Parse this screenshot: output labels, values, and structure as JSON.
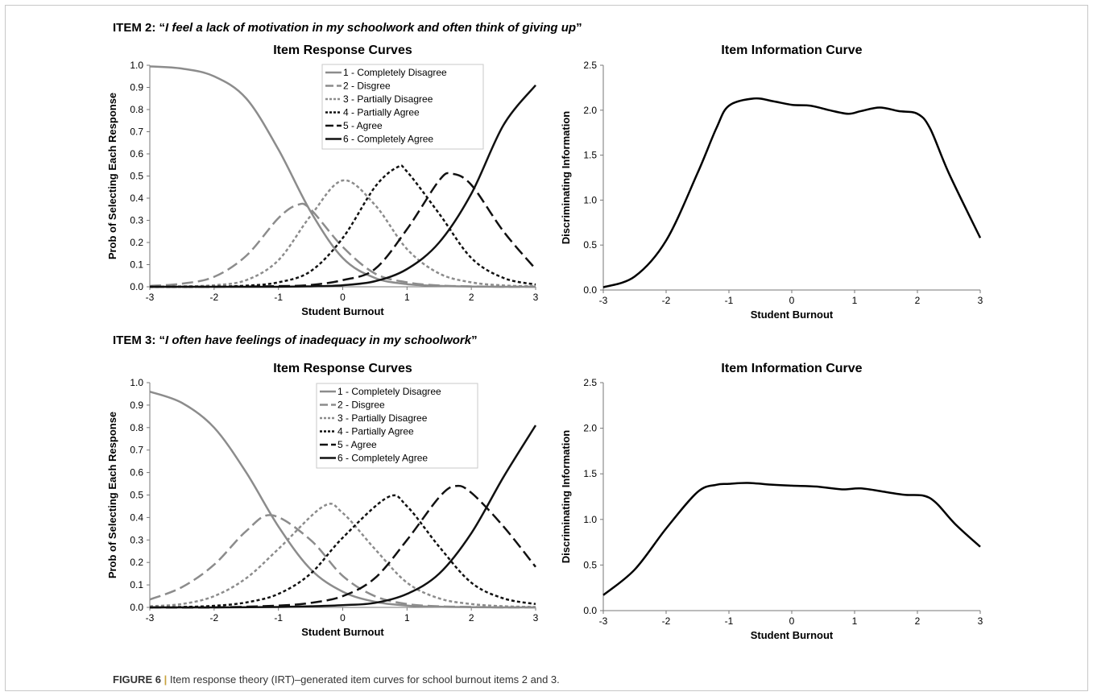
{
  "items": [
    {
      "prefix": "ITEM 2: “",
      "quote": "I feel a lack of motivation in my schoolwork and often think of giving up",
      "suffix": "”"
    },
    {
      "prefix": "ITEM 3: “",
      "quote": "I often have feelings of inadequacy in my schoolwork",
      "suffix": "”"
    }
  ],
  "caption": {
    "label": "FIGURE 6",
    "separator": "|",
    "text": "Item response theory (IRT)–generated item curves for school burnout items 2 and 3."
  },
  "styles": {
    "1 - Completely Disagree": {
      "color": "#8c8c8c",
      "dash": "none"
    },
    "2 - Disgree": {
      "color": "#8c8c8c",
      "dash": "14,6"
    },
    "3 - Partially Disagree": {
      "color": "#8c8c8c",
      "dash": "4,3"
    },
    "4 - Partially Agree": {
      "color": "#111111",
      "dash": "4,3"
    },
    "5 - Agree": {
      "color": "#111111",
      "dash": "14,6"
    },
    "6 - Completely Agree": {
      "color": "#111111",
      "dash": "none"
    }
  },
  "chart_data": [
    {
      "type": "line",
      "title": "Item Response Curves",
      "xlabel": "Student Burnout",
      "ylabel": "Prob of Selecting Each Response",
      "xlim": [
        -3,
        3
      ],
      "ylim": [
        0,
        1.0
      ],
      "xticks": [
        "-3",
        "-2",
        "-1",
        "0",
        "1",
        "2",
        "3"
      ],
      "yticks": [
        "0.0",
        "0.1",
        "0.2",
        "0.3",
        "0.4",
        "0.5",
        "0.6",
        "0.7",
        "0.8",
        "0.9",
        "1.0"
      ],
      "legend": "top-right",
      "series": [
        {
          "name": "1 - Completely Disagree",
          "x": [
            -3,
            -2.5,
            -2,
            -1.5,
            -1,
            -0.5,
            0,
            0.5,
            1,
            1.5,
            2,
            2.5,
            3
          ],
          "y": [
            0.995,
            0.985,
            0.95,
            0.85,
            0.62,
            0.34,
            0.13,
            0.04,
            0.012,
            0.004,
            0.001,
            0.0,
            0.0
          ]
        },
        {
          "name": "2 - Disgree",
          "x": [
            -3,
            -2.5,
            -2,
            -1.5,
            -1,
            -0.7,
            -0.5,
            0,
            0.5,
            1,
            1.5,
            2,
            2.5,
            3
          ],
          "y": [
            0.004,
            0.014,
            0.045,
            0.14,
            0.31,
            0.37,
            0.35,
            0.18,
            0.06,
            0.02,
            0.006,
            0.002,
            0.0,
            0.0
          ]
        },
        {
          "name": "3 - Partially Disagree",
          "x": [
            -3,
            -2.5,
            -2,
            -1.5,
            -1,
            -0.5,
            0,
            0.5,
            1,
            1.5,
            2,
            2.5,
            3
          ],
          "y": [
            0.0,
            0.002,
            0.007,
            0.03,
            0.12,
            0.32,
            0.48,
            0.37,
            0.17,
            0.06,
            0.02,
            0.006,
            0.002
          ]
        },
        {
          "name": "4 - Partially Agree",
          "x": [
            -3,
            -2.5,
            -2,
            -1.5,
            -1,
            -0.5,
            0,
            0.5,
            0.85,
            1,
            1.5,
            2,
            2.5,
            3
          ],
          "y": [
            0.0,
            0.0,
            0.001,
            0.005,
            0.02,
            0.07,
            0.22,
            0.45,
            0.54,
            0.52,
            0.33,
            0.13,
            0.04,
            0.01
          ]
        },
        {
          "name": "5 - Agree",
          "x": [
            -3,
            -2,
            -1,
            -0.5,
            0,
            0.5,
            1,
            1.5,
            1.7,
            2,
            2.5,
            3
          ],
          "y": [
            0.0,
            0.0,
            0.003,
            0.008,
            0.03,
            0.08,
            0.26,
            0.48,
            0.51,
            0.46,
            0.25,
            0.08
          ]
        },
        {
          "name": "6 - Completely Agree",
          "x": [
            -3,
            -2,
            -1,
            -0.5,
            0,
            0.5,
            1,
            1.5,
            2,
            2.5,
            3
          ],
          "y": [
            0.0,
            0.0,
            0.0,
            0.002,
            0.007,
            0.025,
            0.08,
            0.2,
            0.42,
            0.73,
            0.91
          ]
        }
      ]
    },
    {
      "type": "line",
      "title": "Item Information Curve",
      "xlabel": "Student Burnout",
      "ylabel": "Discriminating Information",
      "xlim": [
        -3,
        3
      ],
      "ylim": [
        0,
        2.5
      ],
      "xticks": [
        "-3",
        "-2",
        "-1",
        "0",
        "1",
        "2",
        "3"
      ],
      "yticks": [
        "0.0",
        "0.5",
        "1.0",
        "1.5",
        "2.0",
        "2.5"
      ],
      "series": [
        {
          "name": "",
          "x": [
            -3,
            -2.5,
            -2,
            -1.5,
            -1.2,
            -1,
            -0.6,
            -0.3,
            0,
            0.3,
            0.6,
            0.9,
            1.1,
            1.4,
            1.7,
            2,
            2.2,
            2.5,
            3
          ],
          "y": [
            0.03,
            0.15,
            0.55,
            1.3,
            1.8,
            2.05,
            2.13,
            2.1,
            2.06,
            2.05,
            2.0,
            1.96,
            1.99,
            2.03,
            1.99,
            1.96,
            1.8,
            1.3,
            0.58
          ]
        }
      ]
    },
    {
      "type": "line",
      "title": "Item Response Curves",
      "xlabel": "Student Burnout",
      "ylabel": "Prob of Selecting Each Response",
      "xlim": [
        -3,
        3
      ],
      "ylim": [
        0,
        1.0
      ],
      "xticks": [
        "-3",
        "-2",
        "-1",
        "0",
        "1",
        "2",
        "3"
      ],
      "yticks": [
        "0.0",
        "0.1",
        "0.2",
        "0.3",
        "0.4",
        "0.5",
        "0.6",
        "0.7",
        "0.8",
        "0.9",
        "1.0"
      ],
      "legend": "top-right",
      "series": [
        {
          "name": "1 - Completely Disagree",
          "x": [
            -3,
            -2.5,
            -2,
            -1.5,
            -1,
            -0.5,
            0,
            0.5,
            1,
            1.5,
            2,
            2.5,
            3
          ],
          "y": [
            0.96,
            0.91,
            0.8,
            0.6,
            0.36,
            0.17,
            0.07,
            0.025,
            0.008,
            0.003,
            0.001,
            0.0,
            0.0
          ]
        },
        {
          "name": "2 - Disgree",
          "x": [
            -3,
            -2.5,
            -2,
            -1.5,
            -1.1,
            -0.5,
            0,
            0.5,
            1,
            1.5,
            2,
            2.5,
            3
          ],
          "y": [
            0.035,
            0.09,
            0.19,
            0.34,
            0.41,
            0.3,
            0.14,
            0.05,
            0.015,
            0.005,
            0.002,
            0.0,
            0.0
          ]
        },
        {
          "name": "3 - Partially Disagree",
          "x": [
            -3,
            -2.5,
            -2,
            -1.5,
            -1,
            -0.3,
            0,
            0.5,
            1,
            1.5,
            2,
            2.5,
            3
          ],
          "y": [
            0.005,
            0.015,
            0.05,
            0.13,
            0.26,
            0.45,
            0.42,
            0.26,
            0.11,
            0.04,
            0.015,
            0.005,
            0.002
          ]
        },
        {
          "name": "4 - Partially Agree",
          "x": [
            -3,
            -2.5,
            -2,
            -1.5,
            -1,
            -0.5,
            0,
            0.7,
            1,
            1.5,
            2,
            2.5,
            3
          ],
          "y": [
            0.0,
            0.002,
            0.007,
            0.022,
            0.06,
            0.15,
            0.31,
            0.49,
            0.45,
            0.27,
            0.11,
            0.04,
            0.015
          ]
        },
        {
          "name": "5 - Agree",
          "x": [
            -3,
            -2,
            -1,
            -0.5,
            0,
            0.5,
            1,
            1.5,
            1.75,
            2,
            2.5,
            3
          ],
          "y": [
            0.0,
            0.0,
            0.008,
            0.02,
            0.05,
            0.13,
            0.3,
            0.49,
            0.54,
            0.51,
            0.36,
            0.18
          ]
        },
        {
          "name": "6 - Completely Agree",
          "x": [
            -3,
            -2,
            -1,
            -0.5,
            0,
            0.5,
            1,
            1.5,
            2,
            2.5,
            3
          ],
          "y": [
            0.0,
            0.0,
            0.002,
            0.005,
            0.01,
            0.02,
            0.06,
            0.15,
            0.33,
            0.58,
            0.81
          ]
        }
      ]
    },
    {
      "type": "line",
      "title": "Item Information Curve",
      "xlabel": "Student Burnout",
      "ylabel": "Discriminating Information",
      "xlim": [
        -3,
        3
      ],
      "ylim": [
        0,
        2.5
      ],
      "xticks": [
        "-3",
        "-2",
        "-1",
        "0",
        "1",
        "2",
        "3"
      ],
      "yticks": [
        "0.0",
        "0.5",
        "1.0",
        "1.5",
        "2.0",
        "2.5"
      ],
      "series": [
        {
          "name": "",
          "x": [
            -3,
            -2.5,
            -2,
            -1.5,
            -1.2,
            -1,
            -0.7,
            -0.3,
            0,
            0.4,
            0.8,
            1.1,
            1.5,
            1.8,
            2.1,
            2.3,
            2.6,
            3
          ],
          "y": [
            0.17,
            0.45,
            0.9,
            1.3,
            1.38,
            1.39,
            1.4,
            1.38,
            1.37,
            1.36,
            1.33,
            1.34,
            1.3,
            1.27,
            1.26,
            1.18,
            0.95,
            0.7
          ]
        }
      ]
    }
  ]
}
